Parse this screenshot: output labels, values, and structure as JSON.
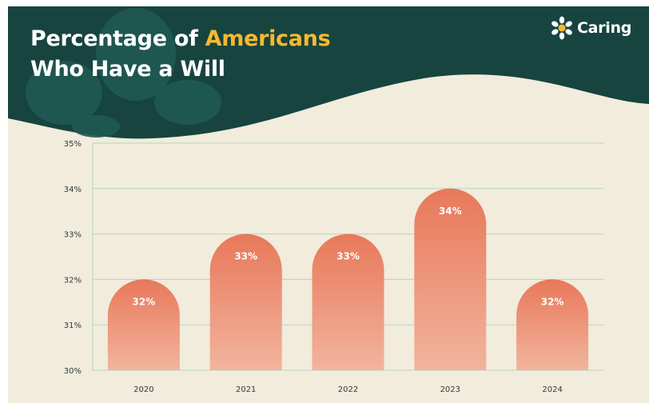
{
  "header": {
    "title_part1": "Percentage of",
    "title_highlight": "Americans",
    "title_line2": "Who Have a Will",
    "brand": "Caring",
    "brand_icon": "sunflower-icon"
  },
  "colors": {
    "header_bg": "#17443f",
    "header_leaf": "#1f5a52",
    "page_bg": "#f1ecdc",
    "highlight": "#f5b931",
    "bar_top": "#e8785a",
    "bar_bottom": "#f2b49d",
    "grid": "#b9d3c4"
  },
  "chart_data": {
    "type": "bar",
    "title": "Percentage of Americans Who Have a Will",
    "categories": [
      "2020",
      "2021",
      "2022",
      "2023",
      "2024"
    ],
    "values": [
      32,
      33,
      33,
      34,
      32
    ],
    "data_labels": [
      "32%",
      "33%",
      "33%",
      "34%",
      "32%"
    ],
    "yticks": [
      "30%",
      "31%",
      "32%",
      "33%",
      "34%",
      "35%"
    ],
    "ylim": [
      30,
      35
    ],
    "xlabel": "",
    "ylabel": "",
    "grid": true
  }
}
